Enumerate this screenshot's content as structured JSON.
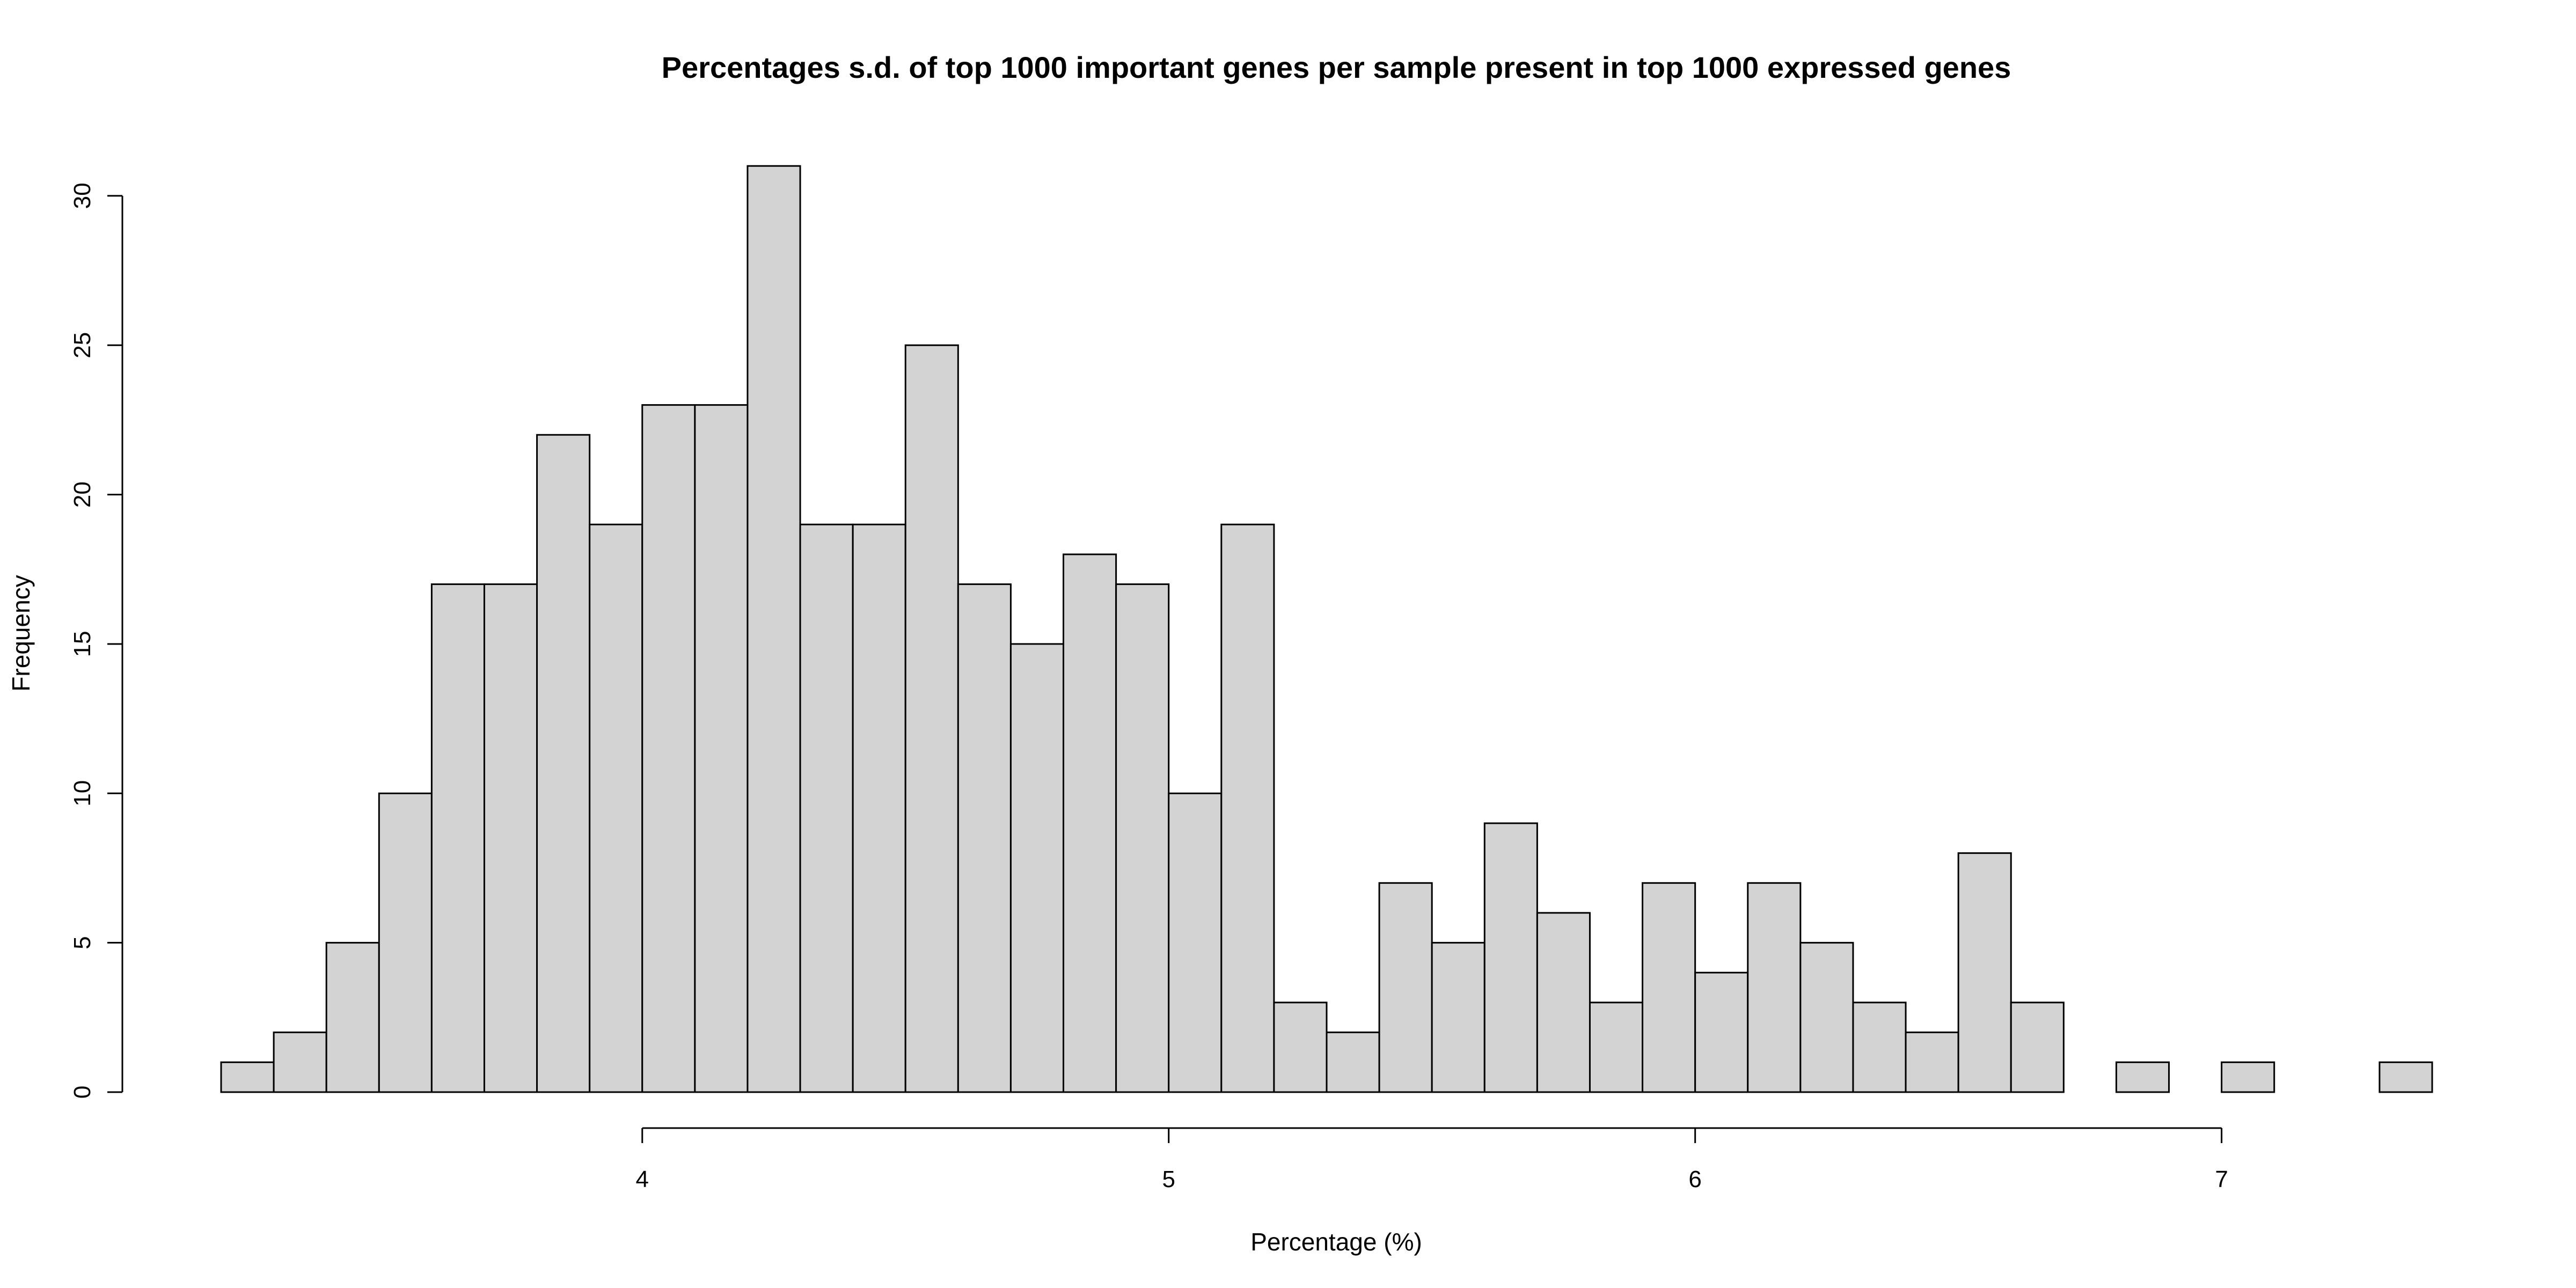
{
  "chart_data": {
    "type": "bar",
    "title": "Percentages s.d. of top 1000 important genes per sample present in top 1000 expressed genes",
    "xlabel": "Percentage (%)",
    "ylabel": "Frequency",
    "bin_width": 0.1,
    "bins_start": [
      3.2,
      3.3,
      3.4,
      3.5,
      3.6,
      3.7,
      3.8,
      3.9,
      4.0,
      4.1,
      4.2,
      4.3,
      4.4,
      4.5,
      4.6,
      4.7,
      4.8,
      4.9,
      5.0,
      5.1,
      5.2,
      5.3,
      5.4,
      5.5,
      5.6,
      5.7,
      5.8,
      5.9,
      6.0,
      6.1,
      6.2,
      6.3,
      6.4,
      6.5,
      6.6,
      6.7,
      6.8,
      6.9,
      7.0,
      7.1,
      7.2,
      7.3
    ],
    "values": [
      1,
      2,
      5,
      10,
      17,
      17,
      22,
      19,
      23,
      23,
      31,
      19,
      19,
      25,
      17,
      15,
      18,
      17,
      10,
      19,
      3,
      2,
      7,
      5,
      9,
      6,
      3,
      7,
      4,
      7,
      5,
      3,
      2,
      8,
      3,
      0,
      1,
      0,
      1,
      0,
      0,
      1
    ],
    "xlim": [
      3.2,
      7.4
    ],
    "ylim": [
      0,
      31
    ],
    "x_ticks": [
      "4",
      "5",
      "6",
      "7"
    ],
    "y_ticks": [
      "0",
      "5",
      "10",
      "15",
      "20",
      "25",
      "30"
    ],
    "grid": false,
    "legend": "none",
    "colors": {
      "bar_fill": "#d3d3d3",
      "bar_stroke": "#000000"
    }
  }
}
